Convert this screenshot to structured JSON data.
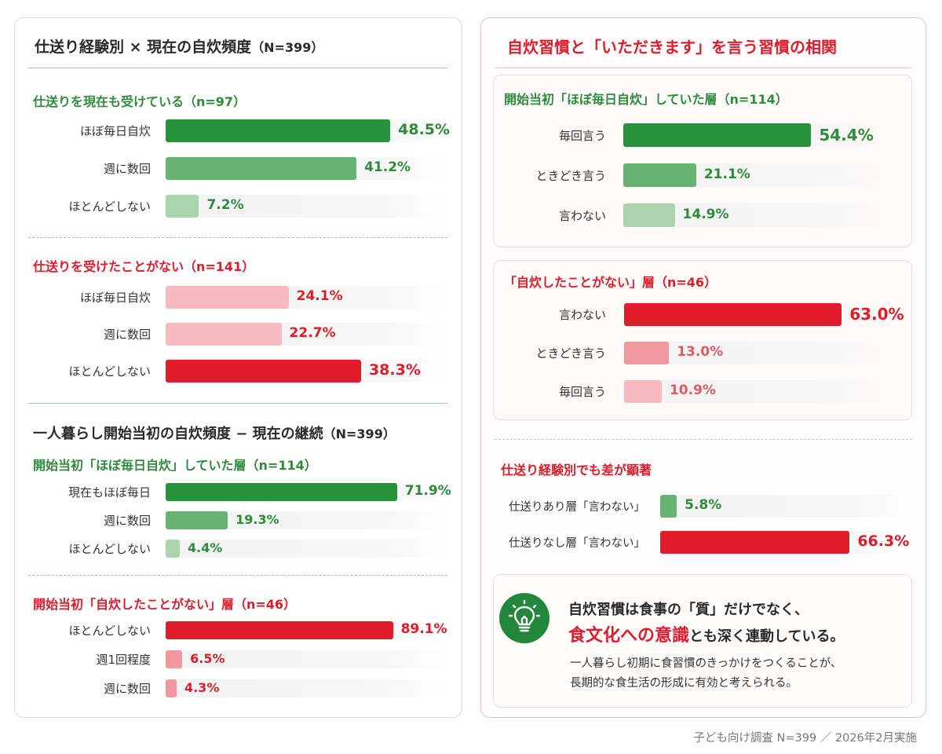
{
  "left": {
    "section1": {
      "title": "仕送り経験別 × 現在の自炊頻度",
      "n_label": "（N=399）",
      "groups": [
        {
          "heading": "仕送りを現在も受けている（n=97）",
          "rows": [
            {
              "label": "ほぼ毎日自炊",
              "value": 48.5,
              "display": "48.5%"
            },
            {
              "label": "週に数回",
              "value": 41.2,
              "display": "41.2%"
            },
            {
              "label": "ほとんどしない",
              "value": 7.2,
              "display": "7.2%"
            }
          ]
        },
        {
          "heading": "仕送りを受けたことがない（n=141）",
          "rows": [
            {
              "label": "ほぼ毎日自炊",
              "value": 24.1,
              "display": "24.1%"
            },
            {
              "label": "週に数回",
              "value": 22.7,
              "display": "22.7%"
            },
            {
              "label": "ほとんどしない",
              "value": 38.3,
              "display": "38.3%"
            }
          ]
        }
      ]
    },
    "section2": {
      "title": "一人暮らし開始当初の自炊頻度 − 現在の継続",
      "n_label": "（N=399）",
      "groups": [
        {
          "heading": "開始当初「ほぼ毎日自炊」していた層（n=114）",
          "rows": [
            {
              "label": "現在もほぼ毎日",
              "value": 71.9,
              "display": "71.9%"
            },
            {
              "label": "週に数回",
              "value": 19.3,
              "display": "19.3%"
            },
            {
              "label": "ほとんどしない",
              "value": 4.4,
              "display": "4.4%"
            }
          ]
        },
        {
          "heading": "開始当初「自炊したことがない」層（n=46）",
          "rows": [
            {
              "label": "ほとんどしない",
              "value": 89.1,
              "display": "89.1%"
            },
            {
              "label": "週1回程度",
              "value": 6.5,
              "display": "6.5%"
            },
            {
              "label": "週に数回",
              "value": 4.3,
              "display": "4.3%"
            }
          ]
        }
      ]
    }
  },
  "right": {
    "title": "自炊習慣と「いただきます」を言う習慣の相関",
    "groups": [
      {
        "heading": "開始当初「ほぼ毎日自炊」していた層（n=114）",
        "rows": [
          {
            "label": "毎回言う",
            "value": 54.4,
            "display": "54.4%"
          },
          {
            "label": "ときどき言う",
            "value": 21.1,
            "display": "21.1%"
          },
          {
            "label": "言わない",
            "value": 14.9,
            "display": "14.9%"
          }
        ]
      },
      {
        "heading": "「自炊したことがない」層（n=46）",
        "rows": [
          {
            "label": "言わない",
            "value": 63.0,
            "display": "63.0%"
          },
          {
            "label": "ときどき言う",
            "value": 13.0,
            "display": "13.0%"
          },
          {
            "label": "毎回言う",
            "value": 10.9,
            "display": "10.9%"
          }
        ]
      }
    ],
    "compare": {
      "heading": "仕送り経験別でも差が顕著",
      "rows": [
        {
          "label": "仕送りあり層「言わない」",
          "value": 5.8,
          "display": "5.8%"
        },
        {
          "label": "仕送りなし層「言わない」",
          "value": 66.3,
          "display": "66.3%"
        }
      ]
    },
    "insight": {
      "icon": "lightbulb-icon",
      "line1": "自炊習慣は食事の「質」だけでなく、",
      "line2_emphasis": "食文化への意識",
      "line2_rest": "とも深く連動している。",
      "note1": "一人暮らし初期に食習慣のきっかけをつくることが、",
      "note2": "長期的な食生活の形成に有効と考えられる。"
    }
  },
  "footer": "子ども向け調査 N=399 ／ 2026年2月実施",
  "colors": {
    "green_dark": "#26923a",
    "green_mid": "#66b372",
    "green_light": "#a9d4ac",
    "red_dark": "#e01c2a",
    "red_mid": "#f0989d",
    "red_light": "#f8b9bf",
    "green_text": "#2e8b3b",
    "red_text": "#e01c2a"
  },
  "chart_data": [
    {
      "type": "bar",
      "title": "仕送り経験別 × 現在の自炊頻度（N=399）",
      "series": [
        {
          "name": "仕送りを現在も受けている（n=97）",
          "categories": [
            "ほぼ毎日自炊",
            "週に数回",
            "ほとんどしない"
          ],
          "values": [
            48.5,
            41.2,
            7.2
          ]
        },
        {
          "name": "仕送りを受けたことがない（n=141）",
          "categories": [
            "ほぼ毎日自炊",
            "週に数回",
            "ほとんどしない"
          ],
          "values": [
            24.1,
            22.7,
            38.3
          ]
        }
      ],
      "xlabel": "",
      "ylabel": ""
    },
    {
      "type": "bar",
      "title": "一人暮らし開始当初の自炊頻度 − 現在の継続（N=399）",
      "series": [
        {
          "name": "開始当初「ほぼ毎日自炊」していた層（n=114）",
          "categories": [
            "現在もほぼ毎日",
            "週に数回",
            "ほとんどしない"
          ],
          "values": [
            71.9,
            19.3,
            4.4
          ]
        },
        {
          "name": "開始当初「自炊したことがない」層（n=46）",
          "categories": [
            "ほとんどしない",
            "週1回程度",
            "週に数回"
          ],
          "values": [
            89.1,
            6.5,
            4.3
          ]
        }
      ],
      "xlabel": "",
      "ylabel": ""
    },
    {
      "type": "bar",
      "title": "自炊習慣と「いただきます」を言う習慣の相関",
      "series": [
        {
          "name": "開始当初「ほぼ毎日自炊」していた層（n=114）",
          "categories": [
            "毎回言う",
            "ときどき言う",
            "言わない"
          ],
          "values": [
            54.4,
            21.1,
            14.9
          ]
        },
        {
          "name": "「自炊したことがない」層（n=46）",
          "categories": [
            "言わない",
            "ときどき言う",
            "毎回言う"
          ],
          "values": [
            63.0,
            13.0,
            10.9
          ]
        }
      ],
      "xlabel": "",
      "ylabel": ""
    },
    {
      "type": "bar",
      "title": "仕送り経験別でも差が顕著",
      "categories": [
        "仕送りあり層「言わない」",
        "仕送りなし層「言わない」"
      ],
      "values": [
        5.8,
        66.3
      ],
      "xlabel": "",
      "ylabel": ""
    }
  ]
}
